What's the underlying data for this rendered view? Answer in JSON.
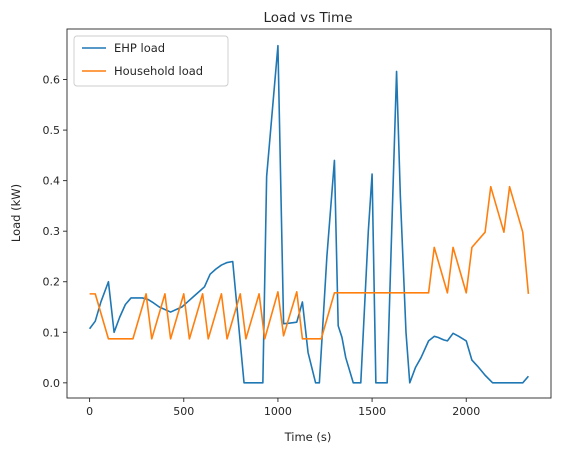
{
  "chart_data": {
    "type": "line",
    "title": "Load vs Time",
    "xlabel": "Time (s)",
    "ylabel": "Load (kW)",
    "xlim": [
      -120,
      2450
    ],
    "ylim": [
      -0.03,
      0.7
    ],
    "xticks": [
      0,
      500,
      1000,
      1500,
      2000
    ],
    "yticks": [
      0.0,
      0.1,
      0.2,
      0.3,
      0.4,
      0.5,
      0.6
    ],
    "ytick_labels": [
      "0.0",
      "0.1",
      "0.2",
      "0.3",
      "0.4",
      "0.5",
      "0.6"
    ],
    "xtick_labels": [
      "0",
      "500",
      "1000",
      "1500",
      "2000"
    ],
    "grid": false,
    "legend_position": "top-left",
    "series": [
      {
        "name": "EHP load",
        "color": "#1f77b4",
        "x": [
          0,
          30,
          60,
          100,
          130,
          160,
          190,
          220,
          250,
          280,
          310,
          340,
          370,
          400,
          430,
          460,
          490,
          520,
          550,
          580,
          610,
          640,
          670,
          700,
          730,
          760,
          790,
          800,
          820,
          870,
          920,
          940,
          1000,
          1030,
          1060,
          1100,
          1130,
          1160,
          1200,
          1220,
          1260,
          1300,
          1320,
          1340,
          1360,
          1400,
          1440,
          1480,
          1500,
          1520,
          1550,
          1580,
          1600,
          1630,
          1650,
          1680,
          1700,
          1730,
          1760,
          1800,
          1830,
          1850,
          1880,
          1900,
          1930,
          1960,
          2000,
          2030,
          2060,
          2100,
          2140,
          2180,
          2220,
          2260,
          2300,
          2330
        ],
        "y": [
          0.107,
          0.122,
          0.16,
          0.2,
          0.1,
          0.13,
          0.155,
          0.168,
          0.168,
          0.168,
          0.165,
          0.158,
          0.15,
          0.145,
          0.14,
          0.145,
          0.15,
          0.16,
          0.17,
          0.18,
          0.19,
          0.215,
          0.225,
          0.233,
          0.238,
          0.24,
          0.12,
          0.08,
          0.0,
          0.0,
          0.0,
          0.408,
          0.667,
          0.117,
          0.118,
          0.12,
          0.16,
          0.06,
          0.0,
          0.0,
          0.25,
          0.44,
          0.113,
          0.09,
          0.05,
          0.0,
          0.0,
          0.3,
          0.413,
          0.0,
          0.0,
          0.0,
          0.25,
          0.616,
          0.37,
          0.1,
          0.0,
          0.03,
          0.05,
          0.083,
          0.092,
          0.09,
          0.085,
          0.083,
          0.098,
          0.092,
          0.083,
          0.045,
          0.033,
          0.015,
          0.0,
          0.0,
          0.0,
          0.0,
          0.0,
          0.013
        ]
      },
      {
        "name": "Household load",
        "color": "#ff7f0e",
        "x": [
          0,
          30,
          100,
          130,
          230,
          300,
          330,
          400,
          430,
          500,
          530,
          600,
          630,
          700,
          730,
          800,
          830,
          900,
          930,
          1000,
          1030,
          1100,
          1130,
          1200,
          1230,
          1300,
          1800,
          1830,
          1900,
          1930,
          2000,
          2030,
          2100,
          2130,
          2200,
          2230,
          2300,
          2330
        ],
        "y": [
          0.176,
          0.176,
          0.087,
          0.087,
          0.087,
          0.176,
          0.087,
          0.176,
          0.087,
          0.176,
          0.087,
          0.176,
          0.087,
          0.176,
          0.087,
          0.176,
          0.087,
          0.176,
          0.087,
          0.18,
          0.093,
          0.18,
          0.087,
          0.087,
          0.087,
          0.178,
          0.178,
          0.268,
          0.178,
          0.268,
          0.178,
          0.268,
          0.298,
          0.388,
          0.298,
          0.388,
          0.298,
          0.176
        ]
      }
    ]
  }
}
